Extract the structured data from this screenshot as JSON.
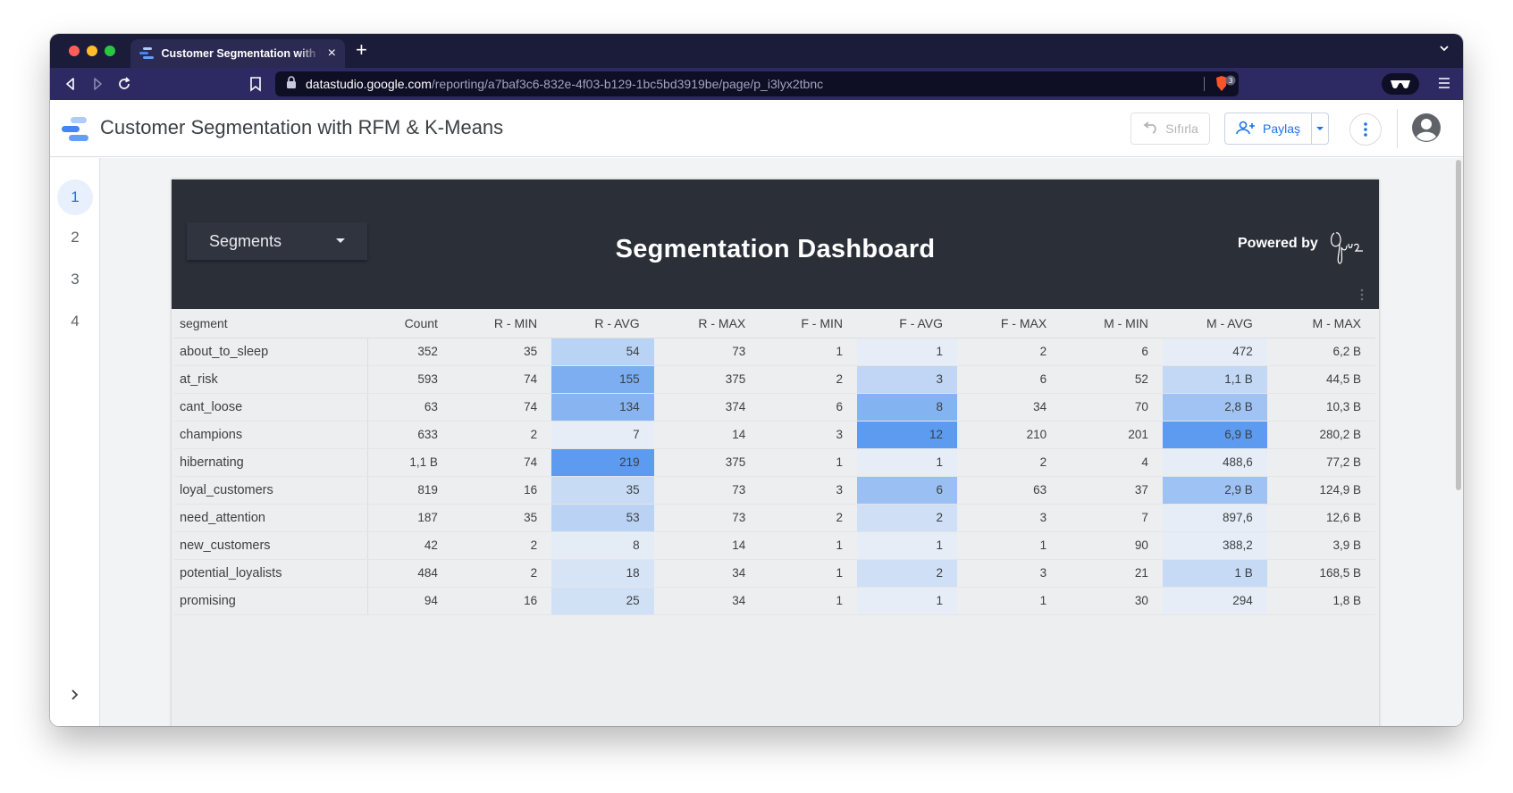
{
  "browser": {
    "tab_title": "Customer Segmentation with RFM & K-Means",
    "url_host": "datastudio.google.com",
    "url_path": "/reporting/a7baf3c6-832e-4f03-b129-1bc5bd3919be/page/p_i3lyx2tbnc",
    "shield_count": "3"
  },
  "header": {
    "title": "Customer Segmentation with RFM & K-Means",
    "reset_label": "Sıfırla",
    "share_label": "Paylaş"
  },
  "pages": [
    "1",
    "2",
    "3",
    "4"
  ],
  "report": {
    "filter_label": "Segments",
    "title": "Segmentation Dashboard",
    "powered_by": "Powered by"
  },
  "table": {
    "columns": [
      "segment",
      "Count",
      "R - MIN",
      "R - AVG",
      "R - MAX",
      "F - MIN",
      "F - AVG",
      "F - MAX",
      "M - MIN",
      "M - AVG",
      "M - MAX"
    ],
    "rows": [
      [
        "about_to_sleep",
        "352",
        "35",
        "54",
        "73",
        "1",
        "1",
        "2",
        "6",
        "472",
        "6,2 B"
      ],
      [
        "at_risk",
        "593",
        "74",
        "155",
        "375",
        "2",
        "3",
        "6",
        "52",
        "1,1 B",
        "44,5 B"
      ],
      [
        "cant_loose",
        "63",
        "74",
        "134",
        "374",
        "6",
        "8",
        "34",
        "70",
        "2,8 B",
        "10,3 B"
      ],
      [
        "champions",
        "633",
        "2",
        "7",
        "14",
        "3",
        "12",
        "210",
        "201",
        "6,9 B",
        "280,2 B"
      ],
      [
        "hibernating",
        "1,1 B",
        "74",
        "219",
        "375",
        "1",
        "1",
        "2",
        "4",
        "488,6",
        "77,2 B"
      ],
      [
        "loyal_customers",
        "819",
        "16",
        "35",
        "73",
        "3",
        "6",
        "63",
        "37",
        "2,9 B",
        "124,9 B"
      ],
      [
        "need_attention",
        "187",
        "35",
        "53",
        "73",
        "2",
        "2",
        "3",
        "7",
        "897,6",
        "12,6 B"
      ],
      [
        "new_customers",
        "42",
        "2",
        "8",
        "14",
        "1",
        "1",
        "1",
        "90",
        "388,2",
        "3,9 B"
      ],
      [
        "potential_loyalists",
        "484",
        "2",
        "18",
        "34",
        "1",
        "2",
        "3",
        "21",
        "1 B",
        "168,5 B"
      ],
      [
        "promising",
        "94",
        "16",
        "25",
        "34",
        "1",
        "1",
        "1",
        "30",
        "294",
        "1,8 B"
      ]
    ],
    "heatmap": {
      "columns": [
        3,
        6,
        9
      ],
      "values": {
        "3": [
          54,
          155,
          134,
          7,
          219,
          35,
          53,
          8,
          18,
          25
        ],
        "6": [
          1,
          3,
          8,
          12,
          1,
          6,
          2,
          1,
          2,
          1
        ],
        "9": [
          472,
          1100000000,
          2800000000,
          6900000000,
          488.6,
          2900000000,
          897.6,
          388.2,
          1000000000,
          294
        ]
      }
    }
  },
  "colors": {
    "banner": "#2a2f38",
    "heat_low": "#e6edf6",
    "heat_high": "#5c9bf0",
    "accent": "#1a73e8"
  }
}
